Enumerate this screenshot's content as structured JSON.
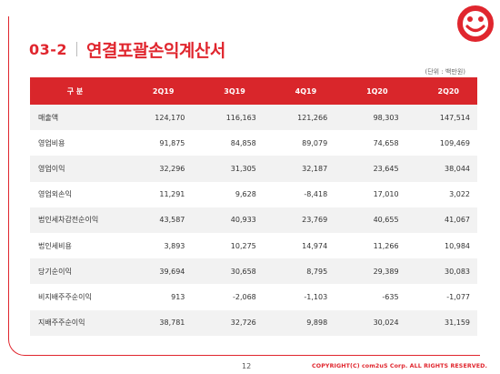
{
  "header": {
    "section_number": "03-2",
    "title": "연결포괄손익계산서"
  },
  "unit_note": "(단위 : 백만원)",
  "table": {
    "columns": [
      "구 분",
      "2Q19",
      "3Q19",
      "4Q19",
      "1Q20",
      "2Q20"
    ],
    "rows": [
      {
        "label": "매출액",
        "values": [
          "124,170",
          "116,163",
          "121,266",
          "98,303",
          "147,514"
        ]
      },
      {
        "label": "영업비용",
        "values": [
          "91,875",
          "84,858",
          "89,079",
          "74,658",
          "109,469"
        ]
      },
      {
        "label": "영업이익",
        "values": [
          "32,296",
          "31,305",
          "32,187",
          "23,645",
          "38,044"
        ]
      },
      {
        "label": "영업외손익",
        "values": [
          "11,291",
          "9,628",
          "-8,418",
          "17,010",
          "3,022"
        ]
      },
      {
        "label": "법인세차감전순이익",
        "values": [
          "43,587",
          "40,933",
          "23,769",
          "40,655",
          "41,067"
        ]
      },
      {
        "label": "법인세비용",
        "values": [
          "3,893",
          "10,275",
          "14,974",
          "11,266",
          "10,984"
        ]
      },
      {
        "label": "당기순이익",
        "values": [
          "39,694",
          "30,658",
          "8,795",
          "29,389",
          "30,083"
        ]
      },
      {
        "label": "비지배주주순이익",
        "values": [
          "913",
          "-2,068",
          "-1,103",
          "-635",
          "-1,077"
        ]
      },
      {
        "label": "지배주주순이익",
        "values": [
          "38,781",
          "32,726",
          "9,898",
          "30,024",
          "31,159"
        ]
      }
    ]
  },
  "footer": {
    "page_number": "12",
    "copyright": "COPYRIGHT(C) com2uS Corp. ALL RIGHTS RESERVED."
  },
  "colors": {
    "accent": "#e0262e",
    "header_bg": "#d9262b",
    "stripe": "#f2f2f2"
  },
  "logo_icon": "smiley-logo-icon"
}
